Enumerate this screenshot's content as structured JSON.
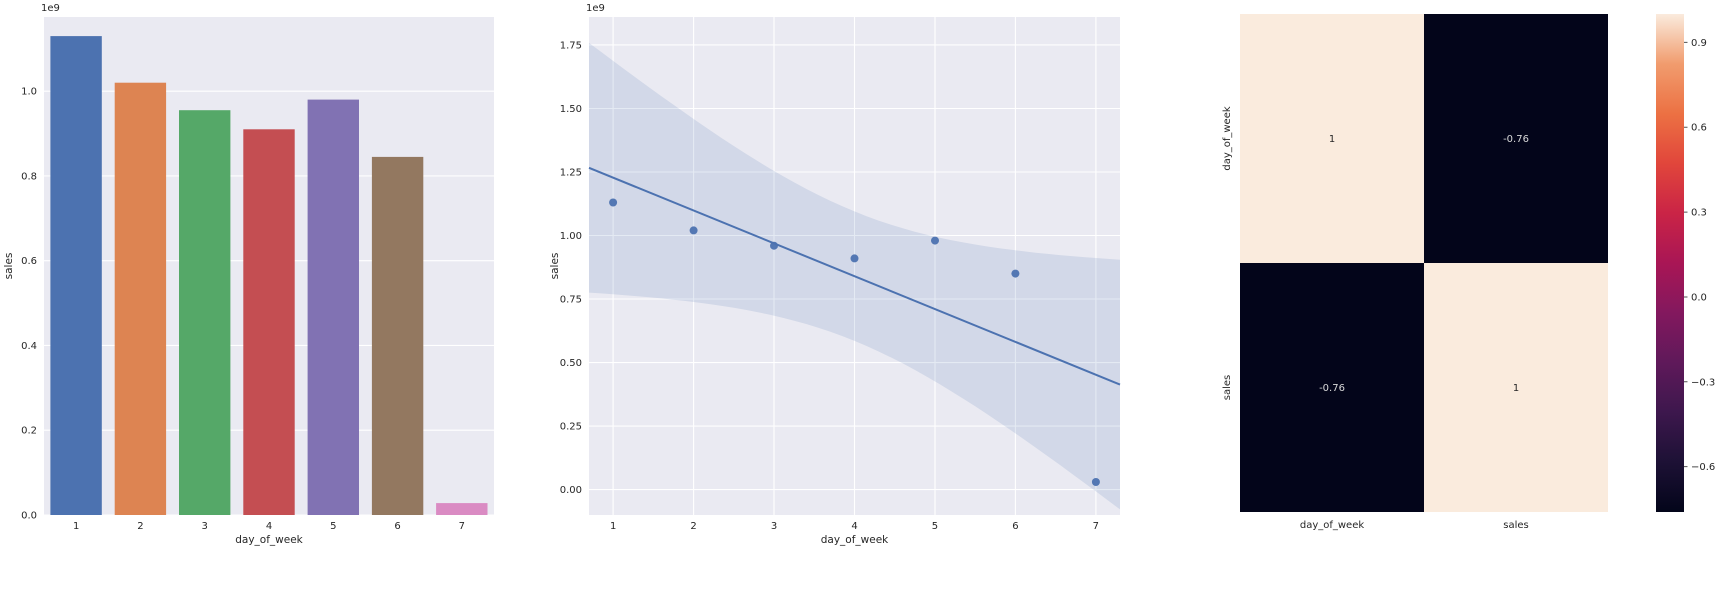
{
  "figure": {
    "background": "#ffffff",
    "axes_background": "#eaeaf2",
    "grid_color": "#ffffff",
    "text_color": "#262626"
  },
  "chart_data": [
    {
      "type": "bar",
      "xlabel": "day_of_week",
      "ylabel": "sales",
      "y_offset_label": "1e9",
      "y_unit": 1000000000,
      "categories": [
        "1",
        "2",
        "3",
        "4",
        "5",
        "6",
        "7"
      ],
      "values": [
        1.13,
        1.02,
        0.955,
        0.91,
        0.98,
        0.845,
        0.028
      ],
      "bar_colors": [
        "#4c72b0",
        "#dd8452",
        "#55a868",
        "#c44e52",
        "#8172b3",
        "#937860",
        "#da8bc3"
      ],
      "ylim": [
        0,
        1.175
      ],
      "yticks": [
        0.0,
        0.2,
        0.4,
        0.6,
        0.8,
        1.0
      ],
      "ytick_labels": [
        "0.0",
        "0.2",
        "0.4",
        "0.6",
        "0.8",
        "1.0"
      ],
      "grid": true
    },
    {
      "type": "scatter",
      "subtype": "regplot-with-ci",
      "xlabel": "day_of_week",
      "ylabel": "sales",
      "y_offset_label": "1e9",
      "y_unit": 1000000000,
      "x": [
        1,
        2,
        3,
        4,
        5,
        6,
        7
      ],
      "y": [
        1.13,
        1.02,
        0.96,
        0.91,
        0.98,
        0.85,
        0.03
      ],
      "marker_color": "#4c72b0",
      "line_color": "#4c72b0",
      "ci_fill_color": "#4c72b0",
      "ci_fill_opacity": 0.15,
      "confidence_interval": 95,
      "xlim": [
        0.7,
        7.3
      ],
      "ylim": [
        -0.1,
        1.86
      ],
      "xticks": [
        1,
        2,
        3,
        4,
        5,
        6,
        7
      ],
      "xtick_labels": [
        "1",
        "2",
        "3",
        "4",
        "5",
        "6",
        "7"
      ],
      "yticks": [
        0,
        0.25,
        0.5,
        0.75,
        1.0,
        1.25,
        1.5,
        1.75
      ],
      "ytick_labels": [
        "0.00",
        "0.25",
        "0.50",
        "0.75",
        "1.00",
        "1.25",
        "1.50",
        "1.75"
      ],
      "grid": true
    },
    {
      "type": "heatmap",
      "rows": [
        "day_of_week",
        "sales"
      ],
      "cols": [
        "day_of_week",
        "sales"
      ],
      "values": [
        [
          1,
          -0.76
        ],
        [
          -0.76,
          1
        ]
      ],
      "annotations": [
        [
          "1",
          "-0.76"
        ],
        [
          "-0.76",
          "1"
        ]
      ],
      "vmin": -0.76,
      "vmax": 1.0,
      "colormap": "rocket",
      "colormap_stops": [
        {
          "t": 0.0,
          "color": "#03051a"
        },
        {
          "t": 0.1,
          "color": "#1d1135"
        },
        {
          "t": 0.2,
          "color": "#3d174d"
        },
        {
          "t": 0.3,
          "color": "#5f195a"
        },
        {
          "t": 0.4,
          "color": "#83185e"
        },
        {
          "t": 0.5,
          "color": "#a91655"
        },
        {
          "t": 0.6,
          "color": "#ca2446"
        },
        {
          "t": 0.7,
          "color": "#e1463b"
        },
        {
          "t": 0.8,
          "color": "#ec7143"
        },
        {
          "t": 0.9,
          "color": "#f19c6e"
        },
        {
          "t": 1.0,
          "color": "#faebdd"
        }
      ],
      "colorbar_ticks": [
        0.9,
        0.6,
        0.3,
        0.0,
        -0.3,
        -0.6
      ],
      "colorbar_tick_labels": [
        "0.9",
        "0.6",
        "0.3",
        "0.0",
        "−0.3",
        "−0.6"
      ],
      "annot_text_dark": "#262626",
      "annot_text_light": "#d9d9d9"
    }
  ]
}
